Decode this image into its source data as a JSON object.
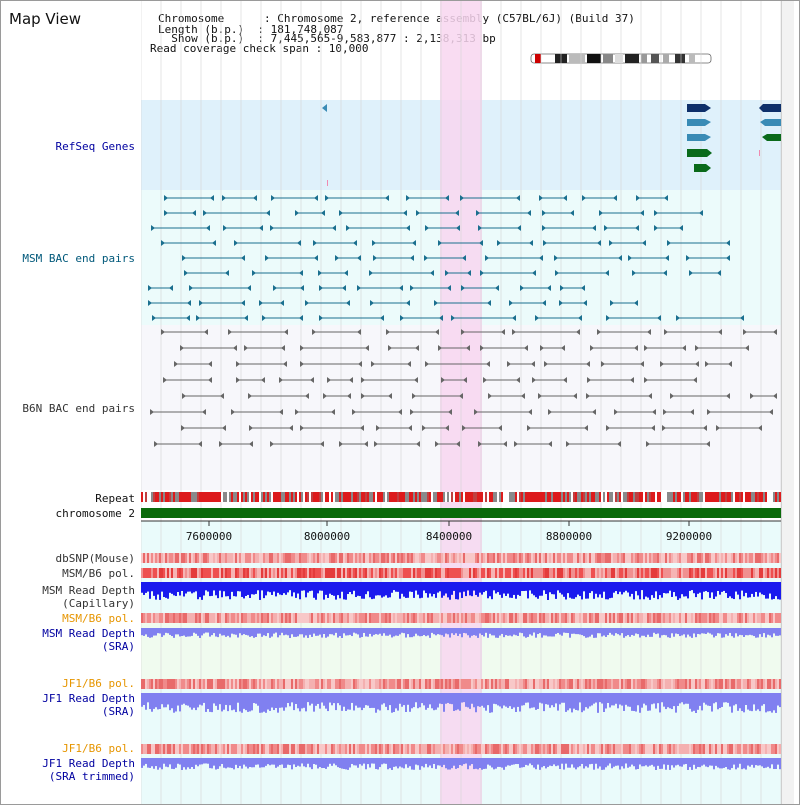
{
  "header": {
    "title": "Map View",
    "info_lines": [
      "Chromosome      : Chromosome 2, reference assembly (C57BL/6J) (Build 37)",
      "Length (b.p.)  : 181,748,087",
      "  Show (b.p.)  : 7,445,565-9,583,877 : 2,138,313 bp",
      "Read coverage check span : 10,000"
    ]
  },
  "tracks": {
    "refseq": "RefSeq Genes",
    "msm_bac": "MSM BAC end pairs",
    "b6n_bac": "B6N BAC end pairs",
    "repeat": "Repeat",
    "chromosome": "chromosome 2",
    "dbsnp": "dbSNP(Mouse)",
    "msm_b6_pol_1": "MSM/B6 pol.",
    "msm_read_depth_cap_1": "MSM Read Depth",
    "msm_read_depth_cap_2": "(Capillary)",
    "msm_b6_pol_2": "MSM/B6 pol.",
    "msm_read_depth_sra_1": "MSM Read Depth",
    "msm_read_depth_sra_2": "(SRA)",
    "jf1_b6_pol_1": "JF1/B6 pol.",
    "jf1_read_depth_sra_1": "JF1 Read Depth",
    "jf1_read_depth_sra_2": "(SRA)",
    "jf1_b6_pol_2": "JF1/B6 pol.",
    "jf1_read_depth_trim_1": "JF1 Read Depth",
    "jf1_read_depth_trim_2": "(SRA trimmed)"
  },
  "axis": {
    "ticks": [
      "7600000",
      "8000000",
      "8400000",
      "8800000",
      "9200000"
    ]
  },
  "colors": {
    "highlight": "#f8d6f0",
    "refseq_bg": "#dff1fb",
    "bac_bg": "#ecfbfb",
    "gene_dark": "#0e2f6a",
    "gene_mid": "#3a8bb5",
    "gene_green": "#0a6a1a",
    "msm_feature": "#1a6f8f",
    "b6n_feature": "#666666",
    "depth_blue": "#1a1aee",
    "depth_lav": "#8080f0",
    "pol_red": "#e03030",
    "chrom_green": "#0a6a0a"
  }
}
